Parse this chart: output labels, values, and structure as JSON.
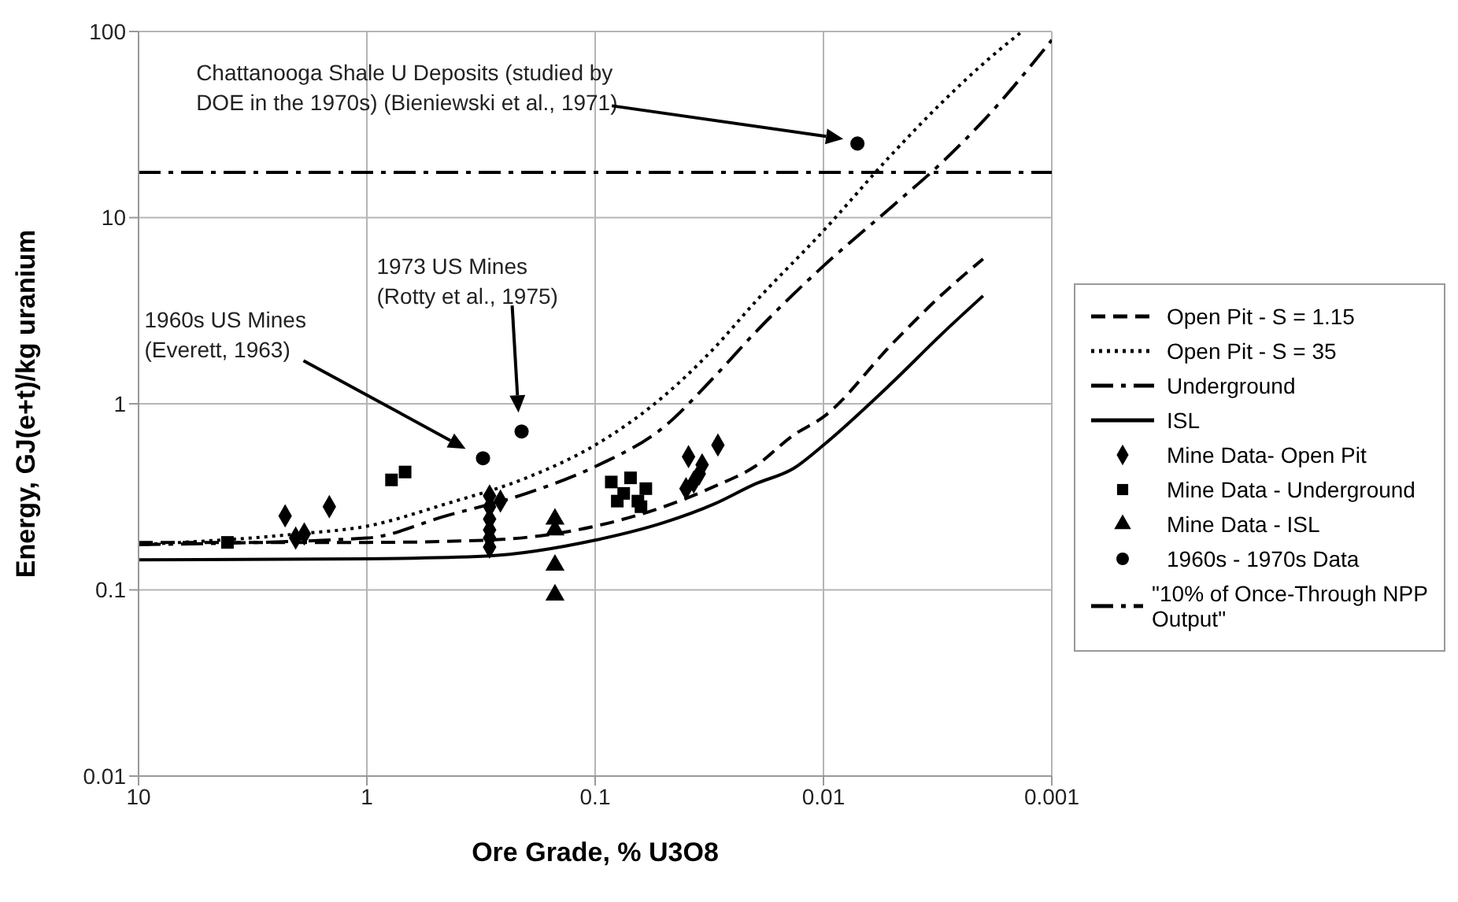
{
  "chart_data": {
    "type": "line",
    "xlabel": "Ore Grade, % U3O8",
    "ylabel": "Energy, GJ(e+t)/kg uranium",
    "log": "xy",
    "xlim": [
      10,
      0.001
    ],
    "xticks": [
      10,
      1,
      0.1,
      0.01,
      0.001
    ],
    "ylim": [
      0.01,
      100
    ],
    "yticks": [
      0.01,
      0.1,
      1,
      10,
      100
    ],
    "grid": true,
    "legend": "right",
    "series": [
      {
        "name": "Open Pit - S = 1.15",
        "color": "#000000",
        "line_style": "dashed",
        "marker": "none",
        "x": [
          10,
          1,
          0.3,
          0.1,
          0.05,
          0.03,
          0.02,
          0.0135,
          0.01,
          0.005,
          0.003,
          0.002
        ],
        "values": [
          0.18,
          0.18,
          0.185,
          0.22,
          0.28,
          0.36,
          0.46,
          0.68,
          0.85,
          2.1,
          3.9,
          6
        ]
      },
      {
        "name": "Open Pit - S = 35",
        "color": "#000000",
        "line_style": "dotted",
        "marker": "none",
        "x": [
          10,
          2,
          1,
          0.45,
          0.2,
          0.1,
          0.05,
          0.03,
          0.02,
          0.01,
          0.005,
          0.003,
          0.002,
          0.00135
        ],
        "values": [
          0.175,
          0.2,
          0.22,
          0.29,
          0.4,
          0.6,
          1.1,
          2,
          3.5,
          8.5,
          22,
          42,
          67,
          100
        ]
      },
      {
        "name": "Underground",
        "color": "#000000",
        "line_style": "dashdot",
        "marker": "none",
        "x": [
          10,
          1,
          0.45,
          0.2,
          0.1,
          0.05,
          0.03,
          0.02,
          0.01,
          0.005,
          0.003,
          0.002,
          0.001
        ],
        "values": [
          0.175,
          0.19,
          0.25,
          0.33,
          0.46,
          0.75,
          1.4,
          2.4,
          5.5,
          11.5,
          20,
          33,
          90
        ]
      },
      {
        "name": "ISL",
        "color": "#000000",
        "line_style": "solid",
        "marker": "none",
        "x": [
          10,
          1,
          0.3,
          0.1,
          0.05,
          0.03,
          0.02,
          0.0135,
          0.01,
          0.005,
          0.003,
          0.002
        ],
        "values": [
          0.145,
          0.147,
          0.152,
          0.185,
          0.23,
          0.29,
          0.37,
          0.45,
          0.6,
          1.3,
          2.4,
          3.8
        ]
      },
      {
        "name": "Mine Data- Open Pit",
        "type": "scatter",
        "color": "#000000",
        "marker": "diamond",
        "x": [
          2.28,
          1.46,
          2.05,
          1.88,
          0.29,
          0.29,
          0.29,
          0.29,
          0.29,
          0.29,
          0.26,
          0.039,
          0.034,
          0.037,
          0.035,
          0.04,
          0.029
        ],
        "values": [
          0.25,
          0.28,
          0.19,
          0.2,
          0.32,
          0.28,
          0.24,
          0.21,
          0.19,
          0.17,
          0.3,
          0.52,
          0.47,
          0.38,
          0.42,
          0.35,
          0.6
        ]
      },
      {
        "name": "Mine Data - Underground",
        "type": "scatter",
        "color": "#000000",
        "marker": "square",
        "x": [
          4.08,
          0.78,
          0.68,
          0.085,
          0.075,
          0.07,
          0.065,
          0.06,
          0.08,
          0.063
        ],
        "values": [
          0.18,
          0.39,
          0.43,
          0.38,
          0.33,
          0.4,
          0.3,
          0.35,
          0.3,
          0.28
        ]
      },
      {
        "name": "Mine Data - ISL",
        "type": "scatter",
        "color": "#000000",
        "marker": "triangle",
        "x": [
          0.15,
          0.15,
          0.15,
          0.15
        ],
        "values": [
          0.24,
          0.21,
          0.136,
          0.094
        ]
      },
      {
        "name": "1960s - 1970s Data",
        "type": "scatter",
        "color": "#000000",
        "marker": "circle",
        "x": [
          0.31,
          0.21,
          0.0071
        ],
        "values": [
          0.51,
          0.71,
          25
        ]
      },
      {
        "name": "\"10% of Once-Through NPP Output\"",
        "color": "#000000",
        "line_style": "dashdot",
        "marker": "none",
        "x": [
          10,
          0.001
        ],
        "values": [
          17.5,
          17.5
        ]
      }
    ],
    "annotations": [
      "Chattanooga Shale U Deposits  (studied by\nDOE in  the 1970s) (Bieniewski et al., 1971)",
      "1973 US Mines\n(Rotty et al., 1975)",
      "1960s US Mines\n(Everett, 1963)"
    ]
  }
}
